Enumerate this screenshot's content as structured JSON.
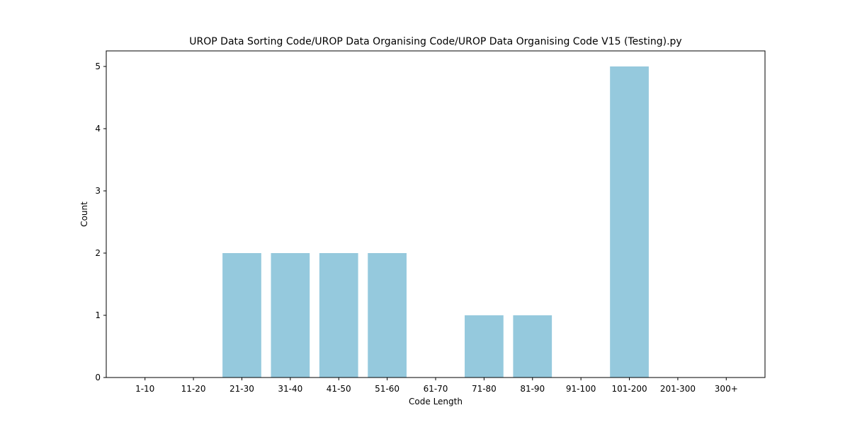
{
  "chart_data": {
    "type": "bar",
    "title": "UROP Data Sorting Code/UROP Data Organising Code/UROP Data Organising Code V15 (Testing).py",
    "xlabel": "Code Length",
    "ylabel": "Count",
    "categories": [
      "1-10",
      "11-20",
      "21-30",
      "31-40",
      "41-50",
      "51-60",
      "61-70",
      "71-80",
      "81-90",
      "91-100",
      "101-200",
      "201-300",
      "300+"
    ],
    "values": [
      0,
      0,
      2,
      2,
      2,
      2,
      0,
      1,
      1,
      0,
      5,
      0,
      0
    ],
    "ylim": [
      0,
      5.25
    ],
    "yticks": [
      0,
      1,
      2,
      3,
      4,
      5
    ],
    "grid": false,
    "bar_color": "#95c9dd"
  }
}
